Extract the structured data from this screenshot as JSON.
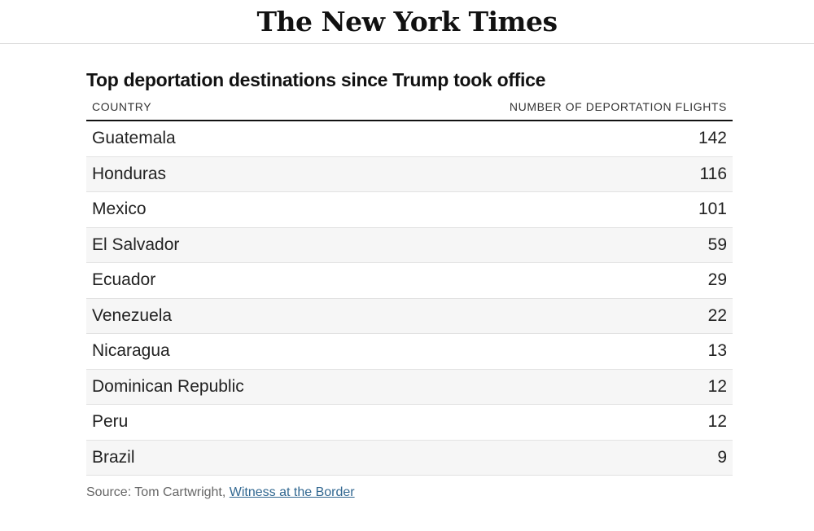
{
  "masthead": {
    "logo_text": "The New York Times"
  },
  "chart_data": {
    "type": "table",
    "title": "Top deportation destinations since Trump took office",
    "columns": [
      "COUNTRY",
      "NUMBER OF DEPORTATION FLIGHTS"
    ],
    "rows": [
      {
        "country": "Guatemala",
        "flights": 142
      },
      {
        "country": "Honduras",
        "flights": 116
      },
      {
        "country": "Mexico",
        "flights": 101
      },
      {
        "country": "El Salvador",
        "flights": 59
      },
      {
        "country": "Ecuador",
        "flights": 29
      },
      {
        "country": "Venezuela",
        "flights": 22
      },
      {
        "country": "Nicaragua",
        "flights": 13
      },
      {
        "country": "Dominican Republic",
        "flights": 12
      },
      {
        "country": "Peru",
        "flights": 12
      },
      {
        "country": "Brazil",
        "flights": 9
      }
    ],
    "row_stripe_color": "#f6f6f6"
  },
  "source": {
    "prefix": "Source: Tom Cartwright, ",
    "link_text": "Witness at the Border",
    "link_color": "#326891"
  }
}
